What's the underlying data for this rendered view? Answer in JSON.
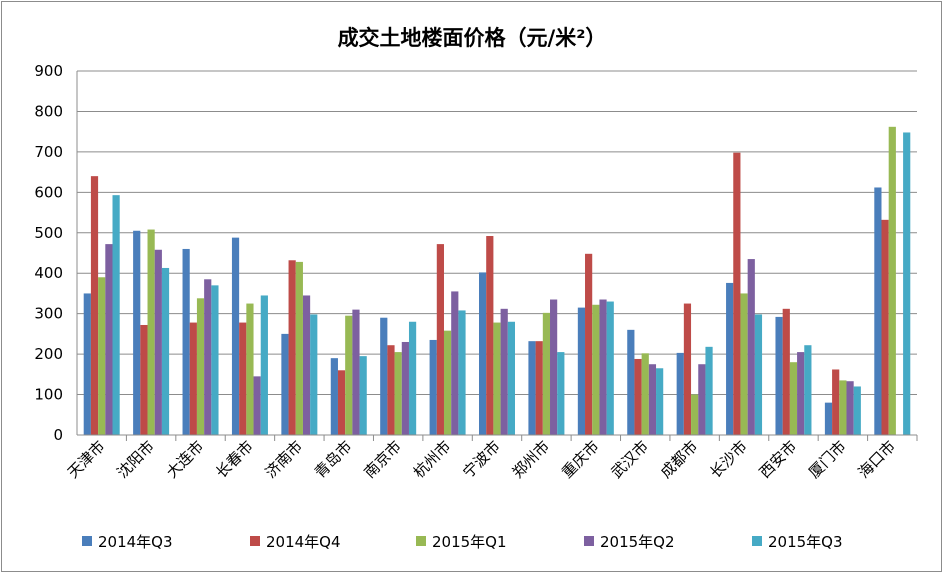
{
  "chart_data": {
    "type": "bar",
    "title": "成交土地楼面价格（元/米²）",
    "xlabel": "",
    "ylabel": "",
    "ylim": [
      0,
      900
    ],
    "yticks": [
      0,
      100,
      200,
      300,
      400,
      500,
      600,
      700,
      800,
      900
    ],
    "grid": true,
    "legend_position": "bottom",
    "categories": [
      "天津市",
      "沈阳市",
      "大连市",
      "长春市",
      "济南市",
      "青岛市",
      "南京市",
      "杭州市",
      "宁波市",
      "郑州市",
      "重庆市",
      "武汉市",
      "成都市",
      "长沙市",
      "西安市",
      "厦门市",
      "海口市"
    ],
    "series": [
      {
        "name": "2014年Q3",
        "color": "#4a7ebb",
        "values": [
          350,
          505,
          460,
          488,
          250,
          190,
          290,
          235,
          402,
          232,
          315,
          260,
          203,
          376,
          292,
          80,
          612
        ]
      },
      {
        "name": "2014年Q4",
        "color": "#be4b48",
        "values": [
          640,
          272,
          278,
          278,
          432,
          160,
          222,
          472,
          492,
          232,
          448,
          188,
          325,
          698,
          312,
          162,
          532
        ]
      },
      {
        "name": "2015年Q1",
        "color": "#98b954",
        "values": [
          390,
          508,
          338,
          325,
          428,
          295,
          205,
          258,
          278,
          302,
          322,
          202,
          100,
          350,
          180,
          135,
          762
        ]
      },
      {
        "name": "2015年Q2",
        "color": "#7d60a0",
        "values": [
          472,
          458,
          385,
          145,
          345,
          310,
          230,
          355,
          312,
          335,
          335,
          175,
          175,
          435,
          205,
          133,
          0
        ]
      },
      {
        "name": "2015年Q3",
        "color": "#46aac5",
        "values": [
          593,
          413,
          370,
          345,
          298,
          195,
          280,
          308,
          280,
          205,
          330,
          165,
          218,
          298,
          222,
          120,
          748
        ]
      }
    ]
  }
}
